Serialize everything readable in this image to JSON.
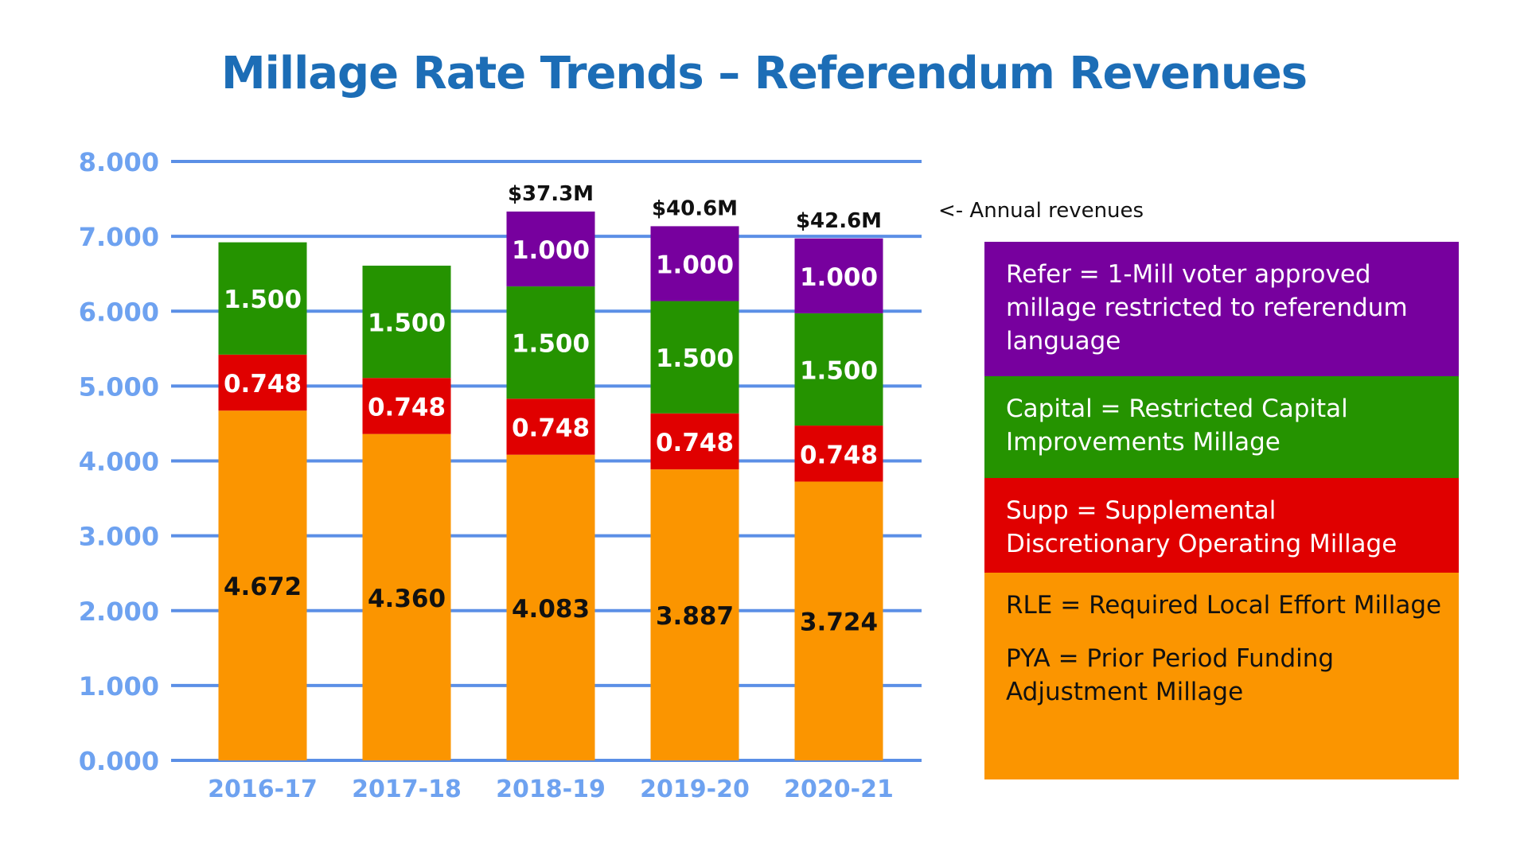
{
  "chart_data": {
    "type": "bar",
    "stacked": true,
    "title": "Millage Rate Trends – Referendum Revenues",
    "xlabel": "",
    "ylabel": "",
    "ylim": [
      0,
      8
    ],
    "yticks": [
      "0.000",
      "1.000",
      "2.000",
      "3.000",
      "4.000",
      "5.000",
      "6.000",
      "7.000",
      "8.000"
    ],
    "grid": true,
    "categories": [
      "2016-17",
      "2017-18",
      "2018-19",
      "2019-20",
      "2020-21"
    ],
    "series": [
      {
        "key": "rle",
        "values": [
          4.672,
          4.36,
          4.083,
          3.887,
          3.724
        ],
        "labels": [
          "4.672",
          "4.360",
          "4.083",
          "3.887",
          "3.724"
        ],
        "color": "#fb9500",
        "label_color": "#111111"
      },
      {
        "key": "supp",
        "values": [
          0.748,
          0.748,
          0.748,
          0.748,
          0.748
        ],
        "labels": [
          "0.748",
          "0.748",
          "0.748",
          "0.748",
          "0.748"
        ],
        "color": "#e00000",
        "label_color": "#ffffff"
      },
      {
        "key": "capital",
        "values": [
          1.5,
          1.5,
          1.5,
          1.5,
          1.5
        ],
        "labels": [
          "1.500",
          "1.500",
          "1.500",
          "1.500",
          "1.500"
        ],
        "color": "#259300",
        "label_color": "#ffffff"
      },
      {
        "key": "refer",
        "values": [
          0,
          0,
          1.0,
          1.0,
          1.0
        ],
        "labels": [
          "",
          "",
          "1.000",
          "1.000",
          "1.000"
        ],
        "color": "#77009e",
        "label_color": "#ffffff"
      }
    ],
    "annotations": {
      "revenues": [
        "",
        "",
        "$37.3M",
        "$40.6M",
        "$42.6M"
      ],
      "revenues_note": "<- Annual revenues"
    },
    "legend": {
      "placement": "right",
      "entries": [
        {
          "color": "#77009e",
          "text_color": "#ffffff",
          "lines": [
            "Refer = 1-Mill voter approved millage restricted to referendum language"
          ]
        },
        {
          "color": "#259300",
          "text_color": "#ffffff",
          "lines": [
            "Capital = Restricted Capital Improvements Millage"
          ]
        },
        {
          "color": "#e00000",
          "text_color": "#ffffff",
          "lines": [
            "Supp = Supplemental Discretionary Operating Millage"
          ]
        },
        {
          "color": "#fb9500",
          "text_color": "#111111",
          "lines": [
            "RLE = Required Local Effort Millage",
            "PYA = Prior Period Funding Adjustment Millage"
          ]
        }
      ]
    },
    "colors": {
      "title": "#1c6db6",
      "axis_text": "#6ea2f0",
      "grid": "#5b8fe6"
    }
  }
}
